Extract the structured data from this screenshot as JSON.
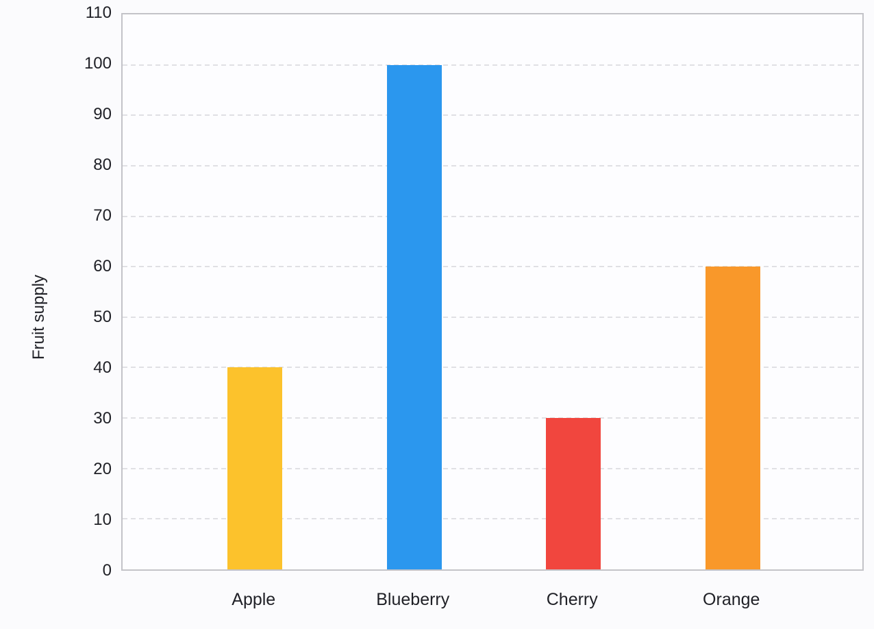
{
  "chart_data": {
    "type": "bar",
    "categories": [
      "Apple",
      "Blueberry",
      "Cherry",
      "Orange"
    ],
    "values": [
      40,
      100,
      30,
      60
    ],
    "bar_colors": [
      "#FCC22C",
      "#2B97EE",
      "#F1463E",
      "#F9982A"
    ],
    "title": "",
    "xlabel": "",
    "ylabel": "Fruit supply",
    "ylim": [
      0,
      110
    ],
    "yticks": [
      0,
      10,
      20,
      30,
      40,
      50,
      60,
      70,
      80,
      90,
      100,
      110
    ],
    "grid": "horizontal-dashed",
    "gridline_values": [
      10,
      20,
      30,
      40,
      50,
      60,
      70,
      80,
      90,
      100
    ],
    "legend_position": "none"
  },
  "colors": {
    "background": "#fbfbfd",
    "plot_background": "#fdfdff",
    "plot_border": "#c3c3c8",
    "gridline": "#e0e0e4",
    "text": "#202127"
  }
}
